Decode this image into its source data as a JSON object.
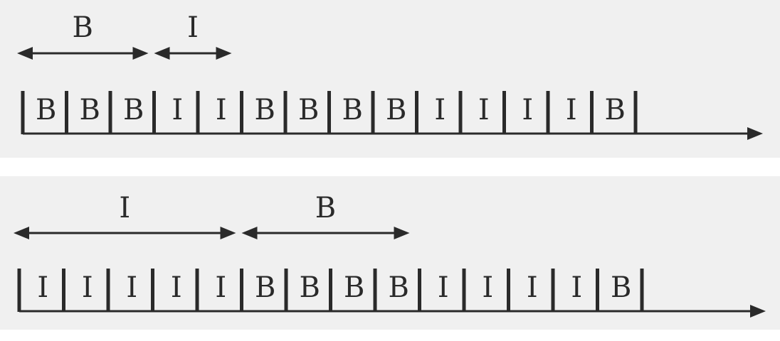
{
  "top": {
    "arrows": [
      {
        "label": "B",
        "span_frames": 3
      },
      {
        "label": "I",
        "span_frames": 2
      }
    ],
    "frames": [
      "B",
      "B",
      "B",
      "I",
      "I",
      "B",
      "B",
      "B",
      "B",
      "I",
      "I",
      "I",
      "I",
      "B"
    ]
  },
  "bottom": {
    "arrows": [
      {
        "label": "I",
        "span_frames": 5
      },
      {
        "label": "B",
        "span_frames": 4
      }
    ],
    "frames": [
      "I",
      "I",
      "I",
      "I",
      "I",
      "B",
      "B",
      "B",
      "B",
      "I",
      "I",
      "I",
      "I",
      "B"
    ]
  },
  "colors": {
    "ink": "#2a2a2a",
    "panel": "#f0f0f0"
  }
}
